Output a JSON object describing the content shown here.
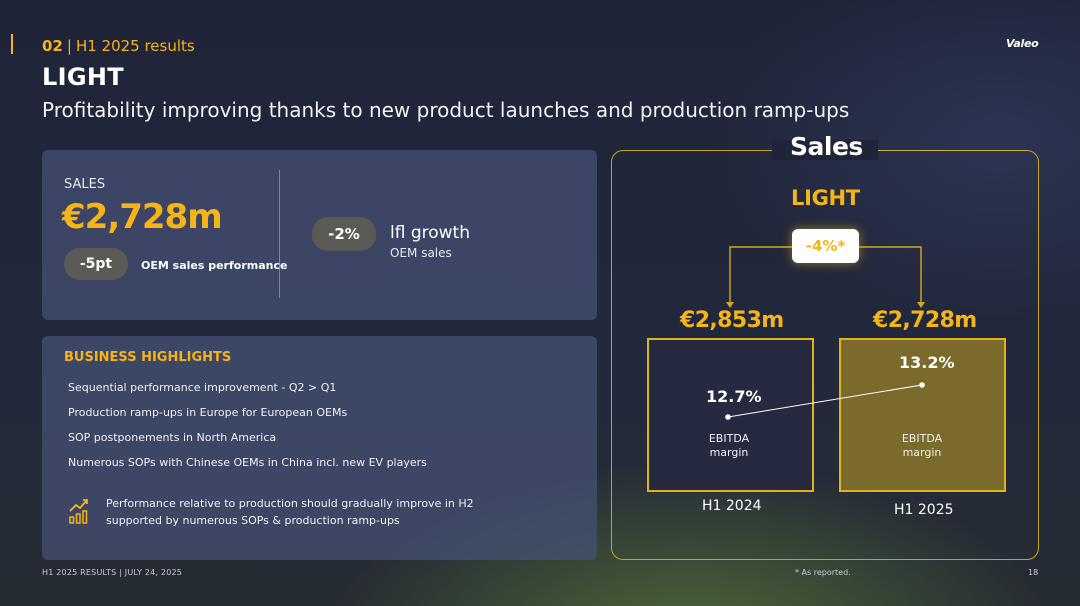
{
  "header": {
    "section_number": "02",
    "separator": "|",
    "section_title": "H1 2025 results",
    "logo_text": "Valeo",
    "title": "LIGHT",
    "subtitle": "Profitability improving thanks to new product launches and production ramp-ups"
  },
  "sales_card": {
    "label": "SALES",
    "value": "€2,728m",
    "oem_pill": "-5pt",
    "oem_label": "OEM sales performance",
    "lfl_pill": "-2%",
    "lfl_label": "lfl growth",
    "lfl_sub": "OEM sales"
  },
  "highlights": {
    "title": "BUSINESS HIGHLIGHTS",
    "items": [
      "Sequential performance improvement - Q2 > Q1",
      "Production ramp-ups in Europe for European OEMs",
      "SOP postponements in North America",
      "Numerous SOPs with Chinese OEMs in China incl. new EV players"
    ],
    "note_icon": "bar-chart-growth-icon",
    "note_line1": "Performance relative to production should gradually improve in H2",
    "note_line2": "supported by numerous SOPs & production ramp-ups"
  },
  "chart_panel": {
    "heading": "Sales",
    "segment": "LIGHT",
    "change": "-4%*"
  },
  "chart_data": {
    "type": "bar",
    "title": "Sales",
    "subtitle": "LIGHT",
    "categories": [
      "H1 2024",
      "H1 2025"
    ],
    "sales_labels": [
      "€2,853m",
      "€2,728m"
    ],
    "sales_values": [
      2853,
      2728
    ],
    "change_label": "-4%*",
    "series": [
      {
        "name": "EBITDA margin",
        "values": [
          12.7,
          13.2
        ],
        "labels": [
          "12.7%",
          "13.2%"
        ]
      }
    ],
    "bar_inner_label_line1": "EBITDA",
    "bar_inner_label_line2": "margin",
    "colors": {
      "bar_2024": "#262a41",
      "bar_2025": "#7a6a2b",
      "accent": "#f5b418"
    }
  },
  "footer": {
    "left": "H1 2025 RESULTS | JULY 24, 2025",
    "note": "* As reported.",
    "page": "18"
  },
  "colors": {
    "accent": "#f5b418",
    "background": "#1f2438"
  }
}
